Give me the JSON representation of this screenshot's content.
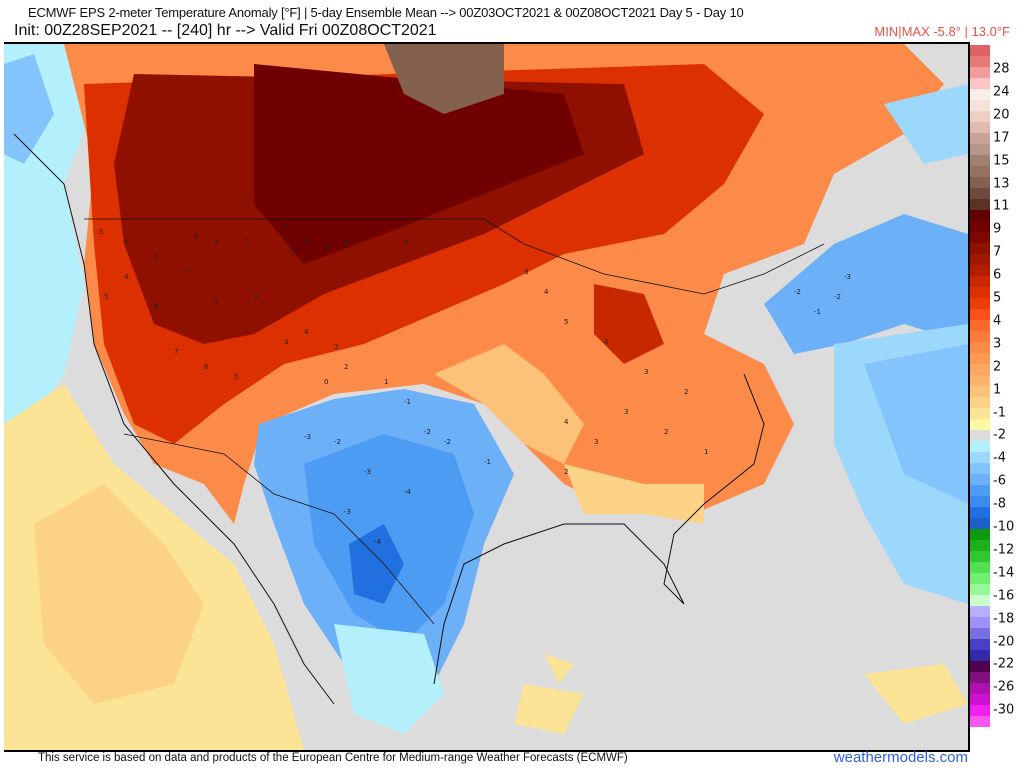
{
  "header": {
    "title_line1": "ECMWF EPS 2-meter Temperature Anomaly [°F] | 5-day Ensemble Mean --> 00Z03OCT2021 & 00Z08OCT2021   Day 5 - Day 10",
    "title_line2": "Init: 00Z28SEP2021 -- [240] hr --> Valid Fri 00Z08OCT2021",
    "minmax": "MIN|MAX -5.8° | 13.0°F"
  },
  "colorbar": {
    "labels": [
      "28",
      "24",
      "20",
      "17",
      "15",
      "13",
      "11",
      "9",
      "7",
      "6",
      "5",
      "4",
      "3",
      "2",
      "1",
      "-1",
      "-2",
      "-4",
      "-6",
      "-8",
      "-10",
      "-12",
      "-14",
      "-16",
      "-18",
      "-20",
      "-22",
      "-26",
      "-30"
    ],
    "colors": [
      "#e06262",
      "#e87a76",
      "#f29c9c",
      "#fcc4c4",
      "#faeee8",
      "#f6e2d8",
      "#ecd0c2",
      "#e0bcae",
      "#c8a498",
      "#b8968a",
      "#a08070",
      "#967262",
      "#84604e",
      "#6e4a3c",
      "#5a3226",
      "#600000",
      "#700000",
      "#800600",
      "#901000",
      "#a01800",
      "#b41e00",
      "#c82800",
      "#dc3000",
      "#ec3c08",
      "#fc5018",
      "#fc6a2c",
      "#fc7c3c",
      "#fc8a48",
      "#fc9a54",
      "#fca862",
      "#fcb46c",
      "#fcc278",
      "#fcd286",
      "#fce496",
      "#fcf8a4",
      "#dcdcdc",
      "#b4f0fc",
      "#9cd8fc",
      "#84c4fc",
      "#6cb0f8",
      "#4c9cf4",
      "#3c8cf0",
      "#2070e0",
      "#1c60c8",
      "#0c9c0c",
      "#1cb01c",
      "#30c830",
      "#50e050",
      "#70f070",
      "#98f898",
      "#ccfccc",
      "#b8b0fc",
      "#a090fc",
      "#7870e0",
      "#4840c8",
      "#3428a8",
      "#500050",
      "#80107c",
      "#b010b0",
      "#d010d0",
      "#f020f0",
      "#f858f0"
    ]
  },
  "map": {
    "colors": {
      "background": "#dcdcdc",
      "ocean_light": "#b4f0fc",
      "yellow": "#fce496",
      "light_orange": "#fcb46c",
      "orange": "#fc7c3c",
      "red": "#c82800",
      "dark_red": "#800600",
      "brown": "#84604e",
      "blue": "#6cb0f8",
      "mid_blue": "#4c9cf4",
      "deep_blue": "#2070e0"
    },
    "anomaly_labels": [
      "5",
      "4",
      "5",
      "4",
      "5",
      "6",
      "8",
      "7",
      "9",
      "8",
      "10",
      "9",
      "8",
      "7",
      "6",
      "7",
      "5",
      "6",
      "8",
      "7",
      "6",
      "5",
      "3",
      "4",
      "3",
      "2",
      "1",
      "0",
      "-1",
      "-2",
      "-3",
      "-2",
      "-3",
      "-4",
      "-3",
      "-4",
      "-2",
      "-1",
      "3",
      "4",
      "5",
      "4",
      "3",
      "2",
      "3",
      "2",
      "1",
      "-2",
      "-1",
      "-2",
      "-3",
      "4",
      "3",
      "2"
    ]
  },
  "footer": {
    "disclaimer": "This service is based on data and products of the European Centre for Medium-range Weather Forecasts (ECMWF)",
    "brand": "weathermodels.com"
  }
}
